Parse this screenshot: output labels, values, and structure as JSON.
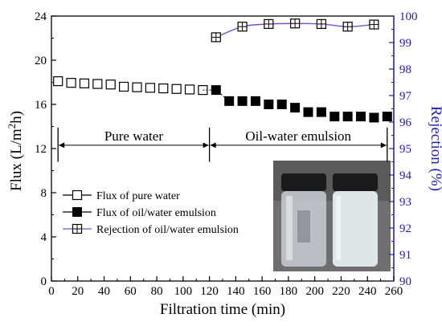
{
  "colors": {
    "left_axis": "#000000",
    "right_axis": "#1f1fb4",
    "rejection_line": "#7b4fd6",
    "open_marker": "#ffffff",
    "filled_marker": "#000000",
    "photo_bg": "#6f6f6f"
  },
  "chart_data": {
    "type": "scatter",
    "x_axis": {
      "label": "Filtration time (min)",
      "range": [
        0,
        260
      ],
      "ticks": [
        0,
        20,
        40,
        60,
        80,
        100,
        120,
        140,
        160,
        180,
        200,
        220,
        240,
        260
      ]
    },
    "y_axis_left": {
      "label_main": "Flux (L/m",
      "label_sup": "2",
      "label_end": "h)",
      "range": [
        0,
        24
      ],
      "ticks": [
        0,
        4,
        8,
        12,
        16,
        20,
        24
      ]
    },
    "y_axis_right": {
      "label": "Rejection (%)",
      "range": [
        90,
        100
      ],
      "ticks": [
        90,
        91,
        92,
        93,
        94,
        95,
        96,
        97,
        98,
        99,
        100
      ]
    },
    "series": [
      {
        "name": "Flux of pure water",
        "axis": "left",
        "marker": "open-square",
        "x": [
          5,
          15,
          25,
          35,
          45,
          55,
          65,
          75,
          85,
          95,
          105,
          115
        ],
        "y": [
          18.1,
          17.95,
          17.9,
          17.85,
          17.8,
          17.6,
          17.55,
          17.5,
          17.45,
          17.4,
          17.35,
          17.3
        ]
      },
      {
        "name": "Flux of oil/water emulsion",
        "axis": "left",
        "marker": "filled-square",
        "x": [
          125,
          135,
          145,
          155,
          165,
          175,
          185,
          195,
          205,
          215,
          225,
          235,
          245,
          255
        ],
        "y": [
          17.3,
          16.3,
          16.3,
          16.3,
          16.0,
          16.0,
          15.7,
          15.3,
          15.3,
          14.9,
          14.9,
          14.9,
          14.8,
          14.9
        ]
      },
      {
        "name": "Rejection of oil/water emulsion",
        "axis": "right",
        "marker": "crossed-square-line",
        "x": [
          125,
          145,
          165,
          185,
          205,
          225,
          245
        ],
        "y": [
          99.2,
          99.6,
          99.7,
          99.72,
          99.7,
          99.6,
          99.68
        ]
      }
    ],
    "annotations": [
      {
        "text": "Pure water",
        "x_from": 5,
        "x_to": 120,
        "y": 12.3
      },
      {
        "text": "Oil-water emulsion",
        "x_from": 120,
        "x_to": 255,
        "y": 12.3
      }
    ],
    "legend_position": "bottom-left",
    "grid": false
  }
}
